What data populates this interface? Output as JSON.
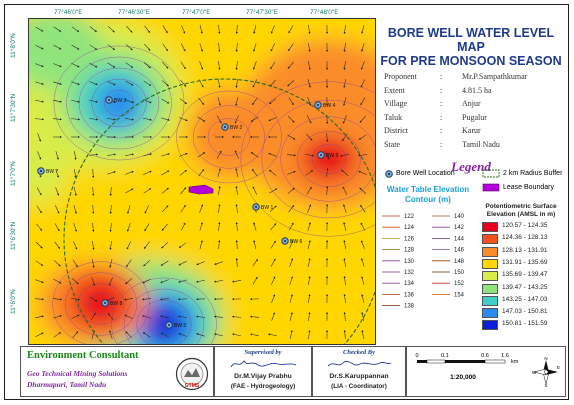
{
  "map_title": [
    "BORE WELL WATER LEVEL MAP",
    "FOR PRE MONSOON SEASON"
  ],
  "top_coords": [
    "77°46'0\"E",
    "77°46'30\"E",
    "77°47'0\"E",
    "77°47'30\"E",
    "77°48'0\"E"
  ],
  "left_coords": [
    "11°8'0\"N",
    "11°7'30\"N",
    "11°7'0\"N",
    "11°6'30\"N",
    "11°6'0\"N"
  ],
  "info": [
    {
      "label": "Proponent",
      "value": "Mr.P.Sampathkumar"
    },
    {
      "label": "Extent",
      "value": "4.81.5 ha"
    },
    {
      "label": "Village",
      "value": "Anjur"
    },
    {
      "label": "Taluk",
      "value": "Pugalur"
    },
    {
      "label": "District",
      "value": "Karur"
    },
    {
      "label": "State",
      "value": "Tamil Nadu"
    }
  ],
  "legend_title": "Legend",
  "legend_symbols": {
    "bore_well": "Bore Well Location",
    "buffer": "2 km Radius Buffer",
    "lease": "Lease Boundary"
  },
  "contour_title": [
    "Water Table Elevation",
    "Contour (m)"
  ],
  "contours_left": [
    "122",
    "124",
    "126",
    "128",
    "130",
    "132",
    "134",
    "136",
    "138"
  ],
  "contours_right": [
    "140",
    "142",
    "144",
    "146",
    "148",
    "150",
    "152",
    "154"
  ],
  "potentiometric_title": [
    "Potentiometric Surface",
    "Elevation (AMSL in m)"
  ],
  "elevation_classes": [
    {
      "label": "120.57 - 124.35",
      "color": "#e8001c"
    },
    {
      "label": "124.36 - 128.13",
      "color": "#f4511e"
    },
    {
      "label": "128.13 - 131.91",
      "color": "#fb8c2a"
    },
    {
      "label": "131.91 - 135.69",
      "color": "#ffd600"
    },
    {
      "label": "135.69 - 139.47",
      "color": "#d9ec48"
    },
    {
      "label": "139.47 - 143.25",
      "color": "#8fe57b"
    },
    {
      "label": "143.25 - 147.03",
      "color": "#3fd0c6"
    },
    {
      "label": "147.03 - 150.81",
      "color": "#2a8af0"
    },
    {
      "label": "150.81 - 151.59",
      "color": "#0a1fd8"
    }
  ],
  "wells": [
    "BW 1",
    "BW 2",
    "BW 3",
    "BW 4",
    "BW 5",
    "BW 6",
    "BW 7",
    "BW 8",
    "BW 9"
  ],
  "consultant": {
    "heading": "Environment Consultant",
    "company": "Geo Technical Mining Solutions",
    "place": "Dharmapuri, Tamil Nadu",
    "logo_text": "GTMS"
  },
  "supervised": {
    "heading": "Supervised by",
    "name": "Dr.M.Vijay Prabhu",
    "role": "(FAE - Hydrogeology)"
  },
  "checked": {
    "heading": "Checked By",
    "name": "Dr.S.Karuppannan",
    "role": "(LIA - Coordinator)"
  },
  "scale": {
    "ticks": [
      "0",
      "0.1",
      "0.6",
      "1.6"
    ],
    "unit": "km",
    "ratio": "1:20,000"
  },
  "north_letters": [
    "N",
    "W",
    "E",
    "S"
  ]
}
